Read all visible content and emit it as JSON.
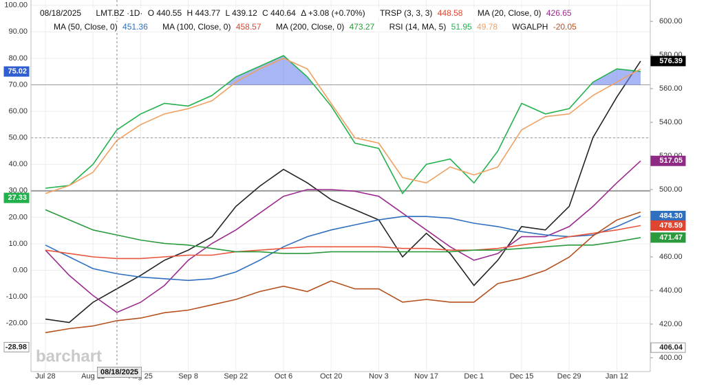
{
  "chart_data": {
    "type": "line",
    "date": "08/18/2025",
    "symbol": "LMT.BZ ·1D·",
    "ohlc": [
      "O 440.55",
      "H 443.77",
      "L 439.12",
      "C 440.64"
    ],
    "change": "Δ +3.08 (+0.70%)",
    "studies": [
      {
        "name": "TRSP (3, 3, 3)",
        "readout": "448.58",
        "color": "#e0452f"
      }
    ],
    "watermark": "barchart",
    "categories": [
      "Jul 28",
      null,
      "Aug 11",
      null,
      "Aug 25",
      null,
      "Sep 8",
      null,
      "Sep 22",
      null,
      "Oct 6",
      null,
      "Oct 20",
      null,
      "Nov 3",
      null,
      "Nov 17",
      null,
      "Dec 1",
      null,
      "Dec 15",
      null,
      "Dec 29",
      null,
      "Jan 12",
      null
    ],
    "ylim": [
      -38.2,
      102
    ],
    "yticks": [
      {
        "value": 100,
        "label": "100.00"
      },
      {
        "value": 90,
        "label": "90.00"
      },
      {
        "value": 80,
        "label": "80.00"
      },
      {
        "value": 70,
        "label": "70.00"
      },
      {
        "value": 60,
        "label": "60.00"
      },
      {
        "value": 50,
        "label": "50.00"
      },
      {
        "value": 40,
        "label": "40.00"
      },
      {
        "value": 30,
        "label": "30.00"
      },
      {
        "value": 20,
        "label": "20.00"
      },
      {
        "value": 10,
        "label": "10.00"
      },
      {
        "value": 0,
        "label": "0.00"
      },
      {
        "value": -10,
        "label": "-10.00"
      },
      {
        "value": -20,
        "label": "-20.00"
      }
    ],
    "y2lim": [
      391.8,
      612.7
    ],
    "y2ticks": [
      {
        "value": 600,
        "label": "600.00"
      },
      {
        "value": 580,
        "label": "580.00"
      },
      {
        "value": 560,
        "label": "560.00"
      },
      {
        "value": 540,
        "label": "540.00"
      },
      {
        "value": 520,
        "label": "520.00"
      },
      {
        "value": 500,
        "label": "500.00"
      },
      {
        "value": 480,
        "label": "480.00"
      },
      {
        "value": 460,
        "label": "460.00"
      },
      {
        "value": 440,
        "label": "440.00"
      },
      {
        "value": 420,
        "label": "420.00"
      },
      {
        "value": 400,
        "label": "400.00"
      }
    ],
    "reference_lines": [
      70,
      50,
      30
    ],
    "grid": true,
    "series": [
      {
        "name": "LMT.BZ ·1D·",
        "color": "#222222",
        "axis": "y2",
        "values": [
          423,
          421,
          433,
          441,
          449,
          458,
          464,
          472,
          490,
          502,
          512,
          504,
          494,
          488,
          482,
          460,
          474,
          462,
          443,
          458,
          478,
          476,
          490,
          531,
          555,
          576.39
        ]
      },
      {
        "name": "MA (20, Close, 0)",
        "readout": "426.65",
        "color": "#9b2a8f",
        "axis": "y2",
        "values": [
          464,
          449,
          437,
          427,
          433,
          443,
          458,
          468,
          476,
          486,
          496,
          500,
          500,
          499,
          496,
          486,
          476,
          466,
          458,
          462,
          472,
          472,
          478,
          490,
          504,
          517.05
        ]
      },
      {
        "name": "MA (50, Close, 0)",
        "readout": "451.36",
        "color": "#2f6fbf",
        "axis": "y2",
        "values": [
          467,
          460,
          453,
          450,
          448,
          447,
          446,
          447,
          451,
          458,
          466,
          472,
          476,
          479,
          482,
          484,
          484,
          483,
          480,
          478,
          475,
          473,
          472,
          473,
          478,
          484.3
        ]
      },
      {
        "name": "MA (100, Close, 0)",
        "readout": "458.57",
        "color": "#e8553c",
        "axis": "y2",
        "values": [
          464,
          462,
          460,
          459,
          459,
          460,
          461,
          461,
          463,
          464,
          465,
          466,
          466,
          466,
          466,
          465,
          465,
          464,
          464,
          465,
          467,
          469,
          472,
          474,
          476,
          478.59
        ]
      },
      {
        "name": "MA (200, Close, 0)",
        "readout": "473.27",
        "color": "#2a9a3c",
        "axis": "y2",
        "values": [
          488,
          482,
          476,
          473,
          470,
          468,
          467,
          465,
          463,
          463,
          462,
          462,
          463,
          463,
          463,
          463,
          463,
          463,
          464,
          464,
          465,
          466,
          467,
          467,
          469,
          471.47
        ]
      },
      {
        "name": "RSI (14, MA, 5)",
        "readout": "51.95",
        "color": "#22b14c",
        "axis": "y",
        "fill_above": 70,
        "fill_color": "#6f86ee",
        "values": [
          31,
          32,
          40,
          53,
          59,
          63,
          62,
          66,
          73,
          77,
          81,
          73,
          62,
          48,
          46,
          29,
          40,
          42,
          33,
          45,
          63,
          59,
          61,
          71,
          76,
          75.02
        ]
      },
      {
        "readout": "49.78",
        "color": "#f0a060",
        "axis": "y",
        "values": [
          29,
          32,
          37,
          49,
          55,
          59,
          61,
          64,
          71,
          76,
          80,
          76,
          63,
          50,
          48,
          35,
          33,
          39,
          36,
          39,
          53,
          58,
          59,
          66,
          71,
          76
        ]
      },
      {
        "name": "WGALPH",
        "readout": "-20.05",
        "color": "#b5501e",
        "axis": "y",
        "values": [
          -23.5,
          -22,
          -21,
          -19,
          -18,
          -16,
          -15,
          -13,
          -11,
          -8,
          -6,
          -8,
          -4,
          -7,
          -7,
          -12,
          -11,
          -12,
          -12,
          -5,
          -3,
          0,
          5,
          13,
          19,
          22
        ]
      }
    ],
    "axis_labels": [
      {
        "value": 576.39,
        "label": "576.39",
        "axis": "y2",
        "color": "#000000"
      },
      {
        "value": 517.05,
        "label": "517.05",
        "axis": "y2",
        "color": "#8e2a84"
      },
      {
        "value": 484.3,
        "label": "484.30",
        "axis": "y2",
        "color": "#2f6fbf"
      },
      {
        "value": 478.59,
        "label": "478.59",
        "axis": "y2",
        "color": "#e0452f"
      },
      {
        "value": 471.47,
        "label": "471.47",
        "axis": "y2",
        "color": "#2a9a3c"
      },
      {
        "value": 406.04,
        "label": "406.04",
        "axis": "y2",
        "color": "#ffffff"
      },
      {
        "value": 75.02,
        "label": "75.02",
        "axis": "y",
        "color": "#2f5fd0"
      },
      {
        "value": 27.33,
        "label": "27.33",
        "axis": "y",
        "color": "#22b14c"
      },
      {
        "value": -28.98,
        "label": "-28.98",
        "axis": "y",
        "color": "#ffffff"
      }
    ]
  }
}
